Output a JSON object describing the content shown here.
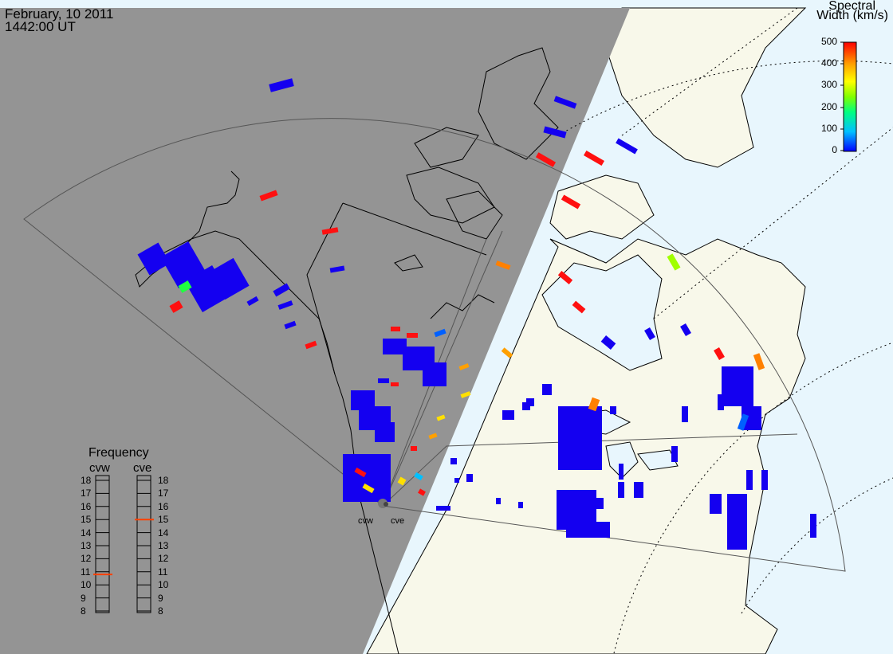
{
  "header": {
    "date": "February, 10 2011",
    "time": "1442:00 UT"
  },
  "colorbar": {
    "title_line1": "Spectral",
    "title_line2": "Width (km/s)",
    "ticks": [
      "500",
      "400",
      "300",
      "200",
      "100",
      "0"
    ],
    "min": 0,
    "max": 500,
    "colors": [
      "#0000ff",
      "#00c0ff",
      "#00ff80",
      "#80ff00",
      "#ffff00",
      "#ffa000",
      "#ff0000"
    ]
  },
  "frequency_panel": {
    "title": "Frequency",
    "radars": [
      {
        "name": "cvw",
        "current_mhz": 10.8
      },
      {
        "name": "cve",
        "current_mhz": 15.0
      }
    ],
    "scale": [
      "18",
      "17",
      "16",
      "15",
      "14",
      "13",
      "12",
      "11",
      "10",
      "9",
      "8"
    ]
  },
  "radar_sites": [
    {
      "name": "cvw"
    },
    {
      "name": "cve"
    }
  ],
  "colors": {
    "night_shade": "#949494",
    "land_day": "#f8f8ea",
    "ocean_day": "#e8f6fd",
    "echo_low": "#1400f0",
    "echo_high": "#ff1010",
    "coastline": "#000000"
  }
}
